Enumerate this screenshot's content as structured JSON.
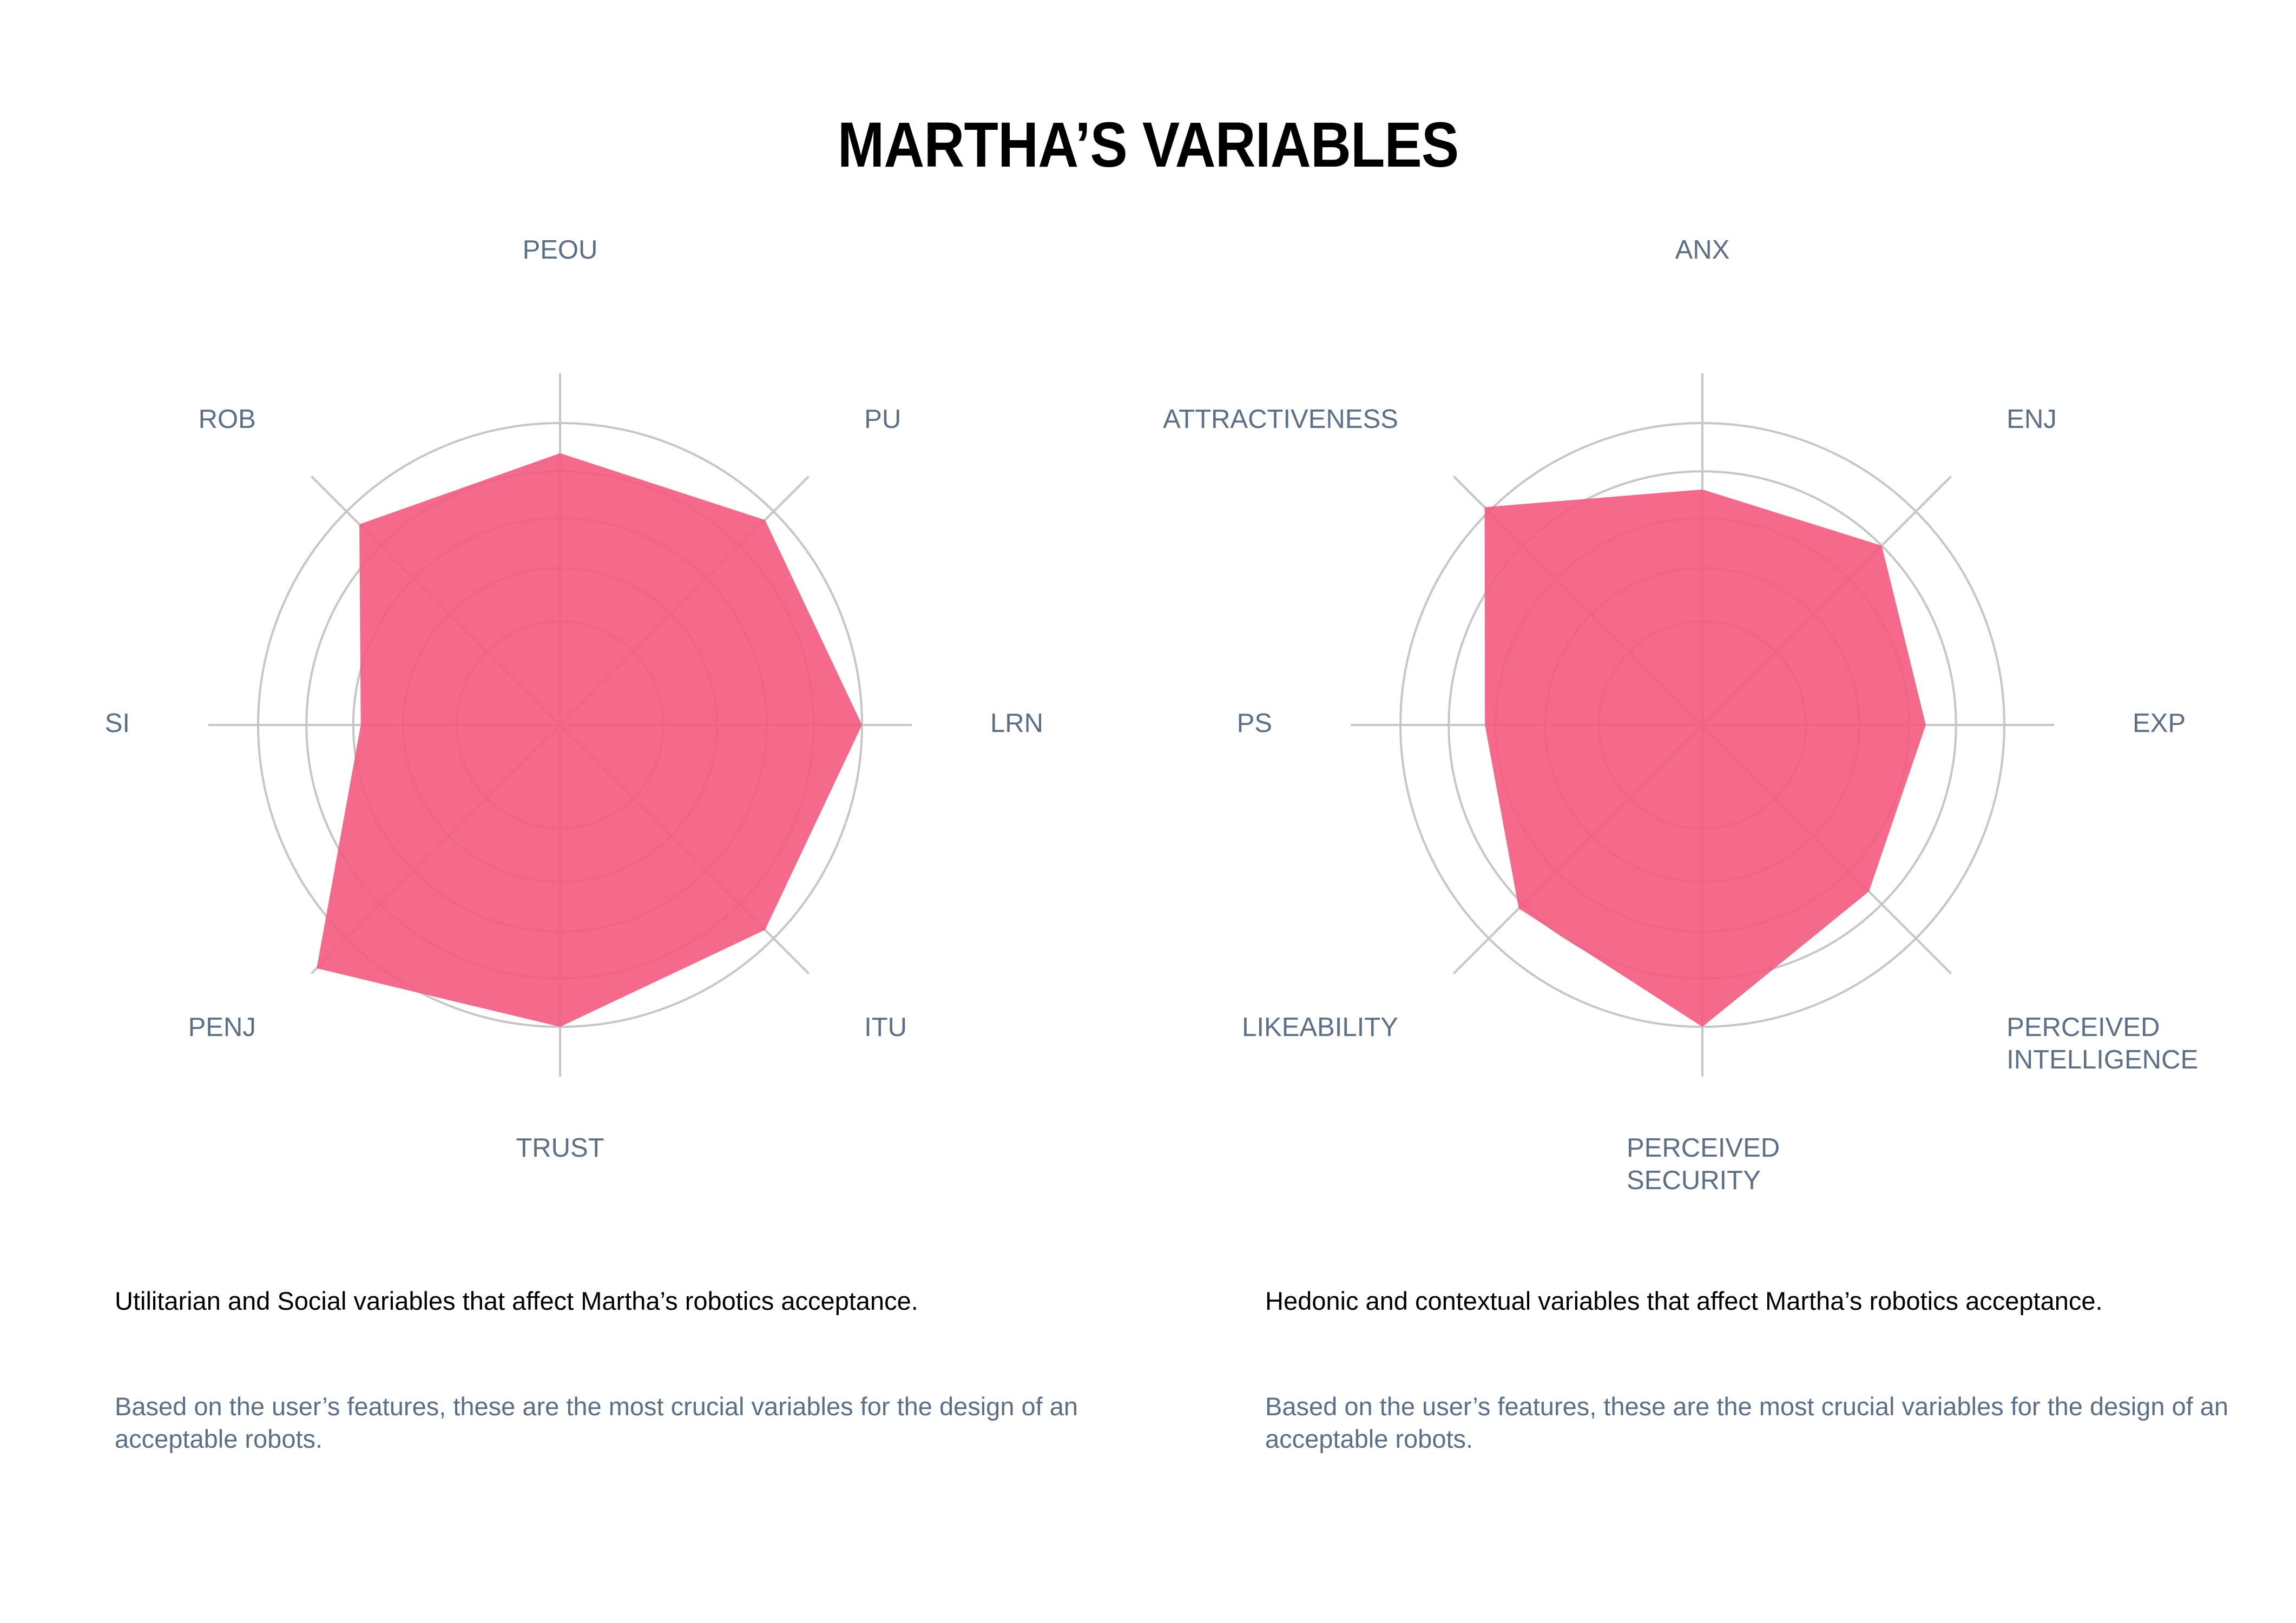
{
  "title": "MARTHA’S VARIABLES",
  "chart_data": [
    {
      "type": "radar",
      "axes": [
        "PEOU",
        "PU",
        "LRN",
        "ITU",
        "TRUST",
        "PENJ",
        "SI",
        "ROB"
      ],
      "values": [
        4.5,
        4.8,
        5.0,
        4.8,
        5.0,
        5.7,
        3.3,
        4.7
      ],
      "rlim": [
        0,
        5
      ],
      "rings": [
        1,
        2,
        3,
        4,
        5
      ],
      "grid": true,
      "color": "#f45a7e",
      "caption": "Utilitarian and Social variables that affect Martha’s robotics acceptance.",
      "note": "Based on the user’s features, these are the most crucial variables for the design of an acceptable robots."
    },
    {
      "type": "radar",
      "axes": [
        "ANX",
        "ENJ",
        "EXP",
        "PERCEIVED INTELLIGENCE",
        "PERCEIVED SECURITY",
        "LIKEABILITY",
        "PS",
        "ATTRACTIVENESS"
      ],
      "values": [
        3.9,
        4.2,
        3.7,
        3.9,
        5.0,
        4.3,
        3.6,
        5.1
      ],
      "rlim": [
        0,
        5
      ],
      "rings": [
        1,
        2,
        3,
        4,
        5
      ],
      "grid": true,
      "color": "#f45a7e",
      "caption": "Hedonic and contextual variables that affect Martha’s robotics acceptance.",
      "note": "Based on the user’s features, these are the most crucial variables for the design of an acceptable robots."
    }
  ]
}
